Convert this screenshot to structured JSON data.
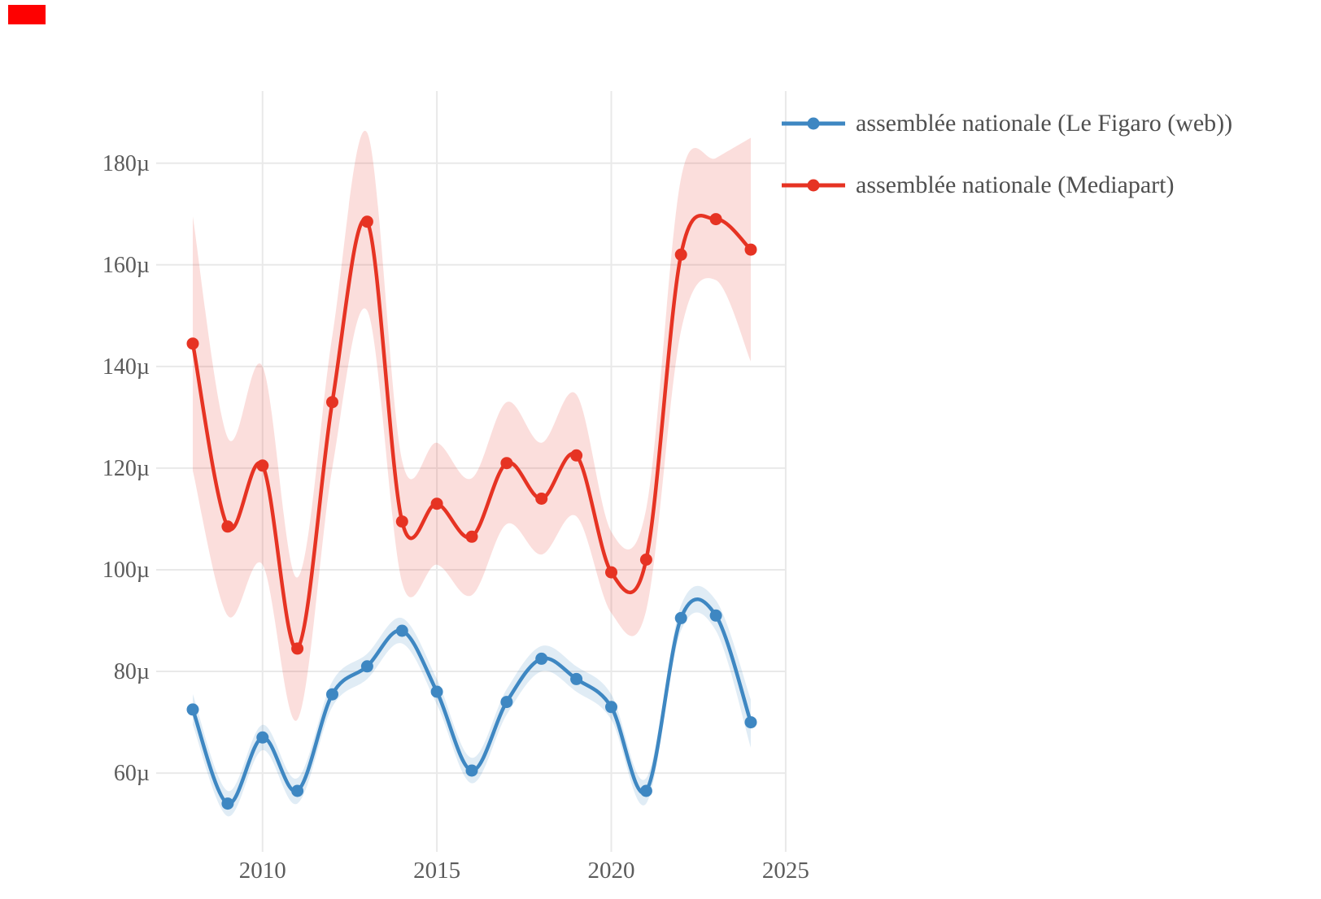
{
  "overlay_marker": {
    "color": "#fe0101"
  },
  "chart_data": {
    "type": "line",
    "title": "",
    "xlabel": "",
    "ylabel": "",
    "unit": "µ",
    "x": [
      2008,
      2009,
      2010,
      2011,
      2012,
      2013,
      2014,
      2015,
      2016,
      2017,
      2018,
      2019,
      2020,
      2021,
      2022,
      2023,
      2024
    ],
    "series": [
      {
        "key": "le-figaro-web",
        "name": "assemblée nationale (Le Figaro (web))",
        "color": "#3e87c2",
        "values": [
          72.5,
          54,
          67,
          56.5,
          75.5,
          81,
          88,
          76,
          60.5,
          74,
          82.5,
          78.5,
          73,
          56.5,
          90.5,
          91,
          70
        ],
        "band_upper": [
          75.5,
          56.5,
          69.5,
          59,
          78,
          83.5,
          90.5,
          78.5,
          63,
          76.5,
          85,
          81,
          75.5,
          59,
          93,
          94,
          74.5
        ],
        "band_lower": [
          69.5,
          51.5,
          64.5,
          54,
          73,
          78.5,
          85.5,
          73.5,
          58,
          71.5,
          80,
          76,
          70.5,
          54,
          88,
          88,
          65
        ]
      },
      {
        "key": "mediapart",
        "name": "assemblée nationale (Mediapart)",
        "color": "#e63323",
        "values": [
          144.5,
          108.5,
          120.5,
          84.5,
          133,
          168.5,
          109.5,
          113,
          106.5,
          121,
          114,
          122.5,
          99.5,
          102,
          162,
          169,
          163
        ],
        "band_upper": [
          169.5,
          126,
          140,
          98.5,
          146,
          186,
          121.5,
          125,
          118,
          133,
          125,
          134.5,
          107.5,
          112,
          177,
          181,
          185
        ],
        "band_lower": [
          119.5,
          91,
          101,
          70.5,
          120,
          151,
          97.5,
          101,
          95,
          109,
          103,
          110.5,
          91.5,
          92,
          147,
          157,
          141
        ]
      }
    ],
    "x_ticks": {
      "values": [
        2010,
        2015,
        2020,
        2025
      ],
      "labels": [
        "2010",
        "2015",
        "2020",
        "2025"
      ]
    },
    "y_ticks": {
      "values": [
        60,
        80,
        100,
        120,
        140,
        160,
        180
      ],
      "labels": [
        "60µ",
        "80µ",
        "100µ",
        "120µ",
        "140µ",
        "160µ",
        "180µ"
      ]
    },
    "x_range": [
      2006.95,
      2025.05
    ],
    "y_range": [
      44.5,
      194.2
    ],
    "grid": true,
    "band_opacity": 0.16,
    "legend_position": "top-right",
    "colors": {
      "grid": "#e9e9e9",
      "tick_text": "#5b5b5b",
      "legend_text": "#4f4f4f"
    }
  },
  "legend": {
    "items": [
      {
        "label": "assemblée nationale (Le Figaro (web))"
      },
      {
        "label": "assemblée nationale (Mediapart)"
      }
    ]
  }
}
